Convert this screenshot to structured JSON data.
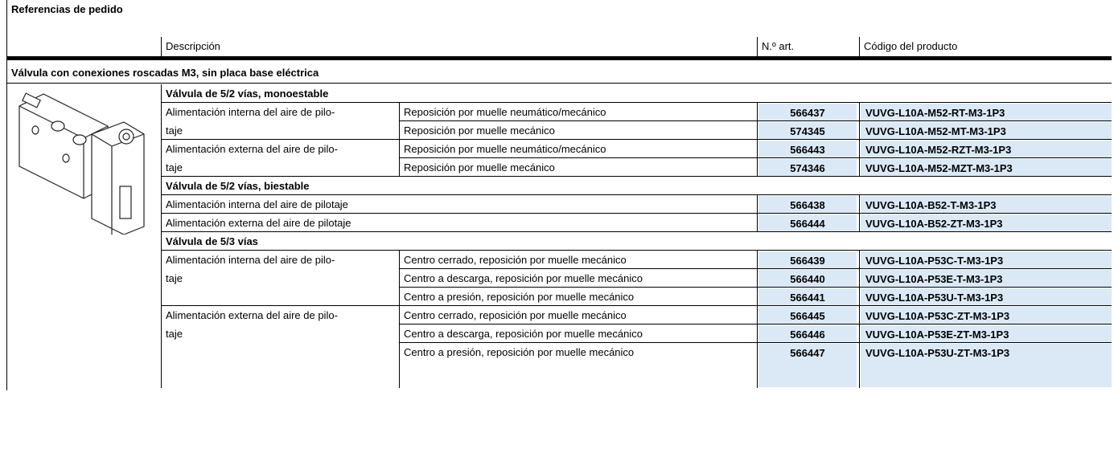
{
  "header": {
    "title": "Referencias de pedido"
  },
  "table": {
    "columns": [
      "Descripción",
      "N.º art.",
      "Código del producto"
    ],
    "section": "Válvula con conexiones roscadas M3, sin placa base eléctrica",
    "groups": [
      {
        "title": "Válvula de 5/2 vías, monoestable",
        "subgroups": [
          {
            "label_lines": [
              "Alimentación interna del aire de pilo-",
              "taje"
            ],
            "items": [
              {
                "variant": "Reposición por muelle neumático/mecánico",
                "part_no": 566437,
                "code": "VUVG-L10A-M52-RT-M3-1P3"
              },
              {
                "variant": "Reposición por muelle mecánico",
                "part_no": 574345,
                "code": "VUVG-L10A-M52-MT-M3-1P3"
              }
            ]
          },
          {
            "label_lines": [
              "Alimentación externa del aire de pilo-",
              "taje"
            ],
            "items": [
              {
                "variant": "Reposición por muelle neumático/mecánico",
                "part_no": 566443,
                "code": "VUVG-L10A-M52-RZT-M3-1P3"
              },
              {
                "variant": "Reposición por muelle mecánico",
                "part_no": 574346,
                "code": "VUVG-L10A-M52-MZT-M3-1P3"
              }
            ]
          }
        ]
      },
      {
        "title": "Válvula de 5/2 vías, biestable",
        "items": [
          {
            "description": "Alimentación interna del aire de pilotaje",
            "part_no": 566438,
            "code": "VUVG-L10A-B52-T-M3-1P3"
          },
          {
            "description": "Alimentación externa del aire de pilotaje",
            "part_no": 566444,
            "code": "VUVG-L10A-B52-ZT-M3-1P3"
          }
        ]
      },
      {
        "title": "Válvula de 5/3 vías",
        "subgroups": [
          {
            "label_lines": [
              "Alimentación interna del aire de pilo-",
              "taje"
            ],
            "items": [
              {
                "variant": "Centro cerrado, reposición por muelle mecánico",
                "part_no": 566439,
                "code": "VUVG-L10A-P53C-T-M3-1P3"
              },
              {
                "variant": "Centro a descarga, reposición por muelle mecánico",
                "part_no": 566440,
                "code": "VUVG-L10A-P53E-T-M3-1P3"
              },
              {
                "variant": "Centro a presión, reposición por muelle mecánico",
                "part_no": 566441,
                "code": "VUVG-L10A-P53U-T-M3-1P3"
              }
            ]
          },
          {
            "label_lines": [
              "Alimentación externa del aire de pilo-",
              "taje"
            ],
            "items": [
              {
                "variant": "Centro cerrado, reposición por muelle mecánico",
                "part_no": 566445,
                "code": "VUVG-L10A-P53C-ZT-M3-1P3"
              },
              {
                "variant": "Centro a descarga, reposición por muelle mecánico",
                "part_no": 566446,
                "code": "VUVG-L10A-P53E-ZT-M3-1P3"
              },
              {
                "variant": "Centro a presión, reposición por muelle mecánico",
                "part_no": 566447,
                "code": "VUVG-L10A-P53U-ZT-M3-1P3"
              }
            ]
          }
        ]
      }
    ]
  }
}
